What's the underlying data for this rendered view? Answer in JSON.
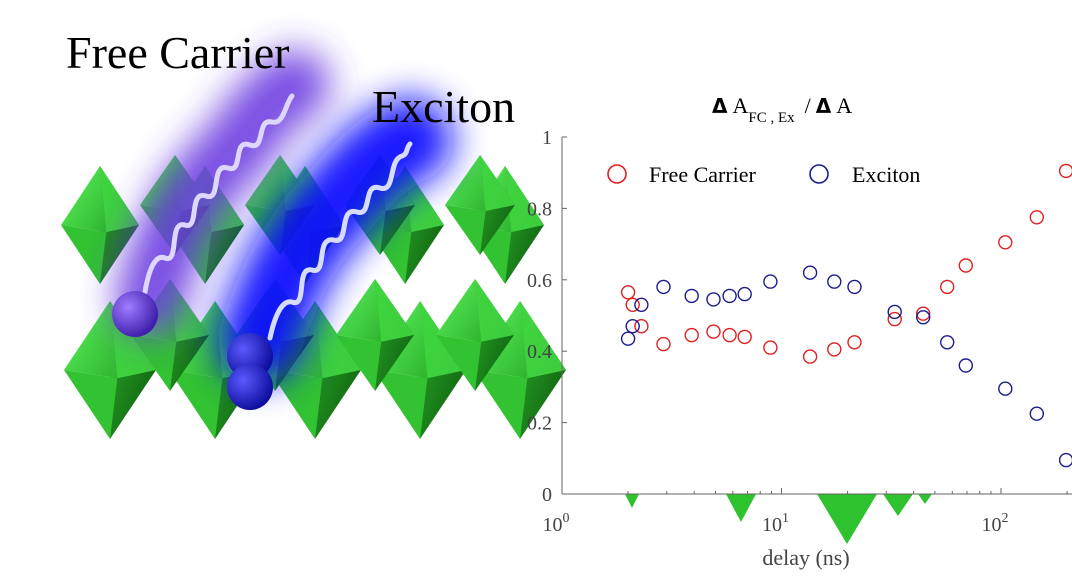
{
  "illustration": {
    "free_carrier_label": "Free Carrier",
    "exciton_label": "Exciton",
    "crystal_color": "#3fcf3f",
    "free_carrier_glow": "#6a3ae0",
    "exciton_glow": "#1010ff"
  },
  "chart_data": {
    "type": "scatter",
    "title_parts": {
      "delta": "Δ",
      "a": "A",
      "sub": "FC , Ex",
      "slash": "/",
      "delta2": "Δ",
      "a2": "A"
    },
    "xlabel": "delay (ns)",
    "x_scale": "log",
    "xlim": [
      1,
      200
    ],
    "ylim": [
      0,
      1
    ],
    "x_ticks": [
      {
        "value": 1,
        "base": "10",
        "exp": "0"
      },
      {
        "value": 10,
        "base": "10",
        "exp": "1"
      },
      {
        "value": 100,
        "base": "10",
        "exp": "2"
      }
    ],
    "y_ticks": [
      {
        "value": 0,
        "label": "0"
      },
      {
        "value": 0.2,
        "label": "0.2"
      },
      {
        "value": 0.4,
        "label": "0.4"
      },
      {
        "value": 0.6,
        "label": "0.6"
      },
      {
        "value": 0.8,
        "label": "0.8"
      },
      {
        "value": 1,
        "label": "1"
      }
    ],
    "grid": false,
    "legend_placement": "top-left",
    "series": [
      {
        "name": "Free Carrier",
        "color": "#e02020",
        "x": [
          2.0,
          2.1,
          2.3,
          2.9,
          3.9,
          4.9,
          5.8,
          6.8,
          8.9,
          13.5,
          17.4,
          21.5,
          32.8,
          44.2,
          56.9,
          69.1,
          104.6,
          145.6,
          198
        ],
        "y": [
          0.565,
          0.53,
          0.47,
          0.42,
          0.445,
          0.455,
          0.445,
          0.44,
          0.41,
          0.385,
          0.405,
          0.425,
          0.49,
          0.505,
          0.58,
          0.64,
          0.705,
          0.775,
          0.905
        ]
      },
      {
        "name": "Exciton",
        "color": "#1c1c8c",
        "x": [
          2.0,
          2.1,
          2.3,
          2.9,
          3.9,
          4.9,
          5.8,
          6.8,
          8.9,
          13.5,
          17.4,
          21.5,
          32.8,
          44.2,
          56.9,
          69.1,
          104.6,
          145.6,
          198
        ],
        "y": [
          0.435,
          0.47,
          0.53,
          0.58,
          0.555,
          0.545,
          0.555,
          0.56,
          0.595,
          0.62,
          0.595,
          0.58,
          0.51,
          0.495,
          0.425,
          0.36,
          0.295,
          0.225,
          0.095
        ]
      }
    ]
  }
}
